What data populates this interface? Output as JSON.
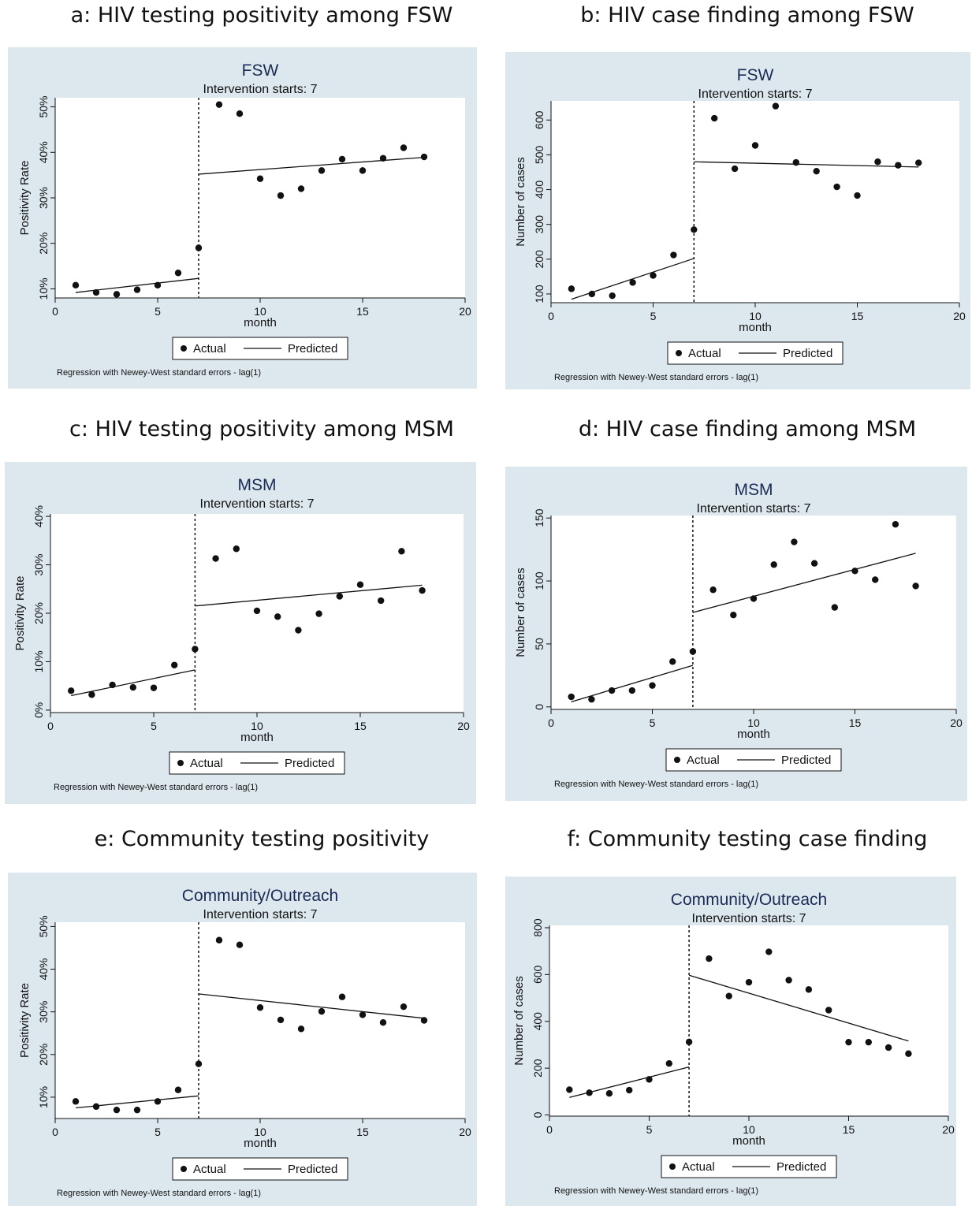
{
  "headings": [
    "a: HIV testing positivity among FSW",
    "b: HIV case finding among FSW",
    "c: HIV testing positivity among MSM",
    "d: HIV case finding among MSM",
    "e: Community testing positivity",
    "f: Community testing case finding"
  ],
  "colors": {
    "panel_bg": "#dce8ee",
    "plot_bg": "#ffffff",
    "title": "#1a2a55",
    "ink": "#111111"
  },
  "chart_data": [
    {
      "type": "line",
      "title": "FSW",
      "subtitle": "Intervention starts: 7",
      "xlabel": "month",
      "ylabel": "Positivity Rate",
      "xlim": [
        0,
        20
      ],
      "xticks": [
        0,
        5,
        10,
        15,
        20
      ],
      "ylim": [
        8,
        52
      ],
      "yticks": [
        10,
        20,
        30,
        40,
        50
      ],
      "ytick_labels": [
        "10%",
        "20%",
        "30%",
        "40%",
        "50%"
      ],
      "intervention_x": 7,
      "series": [
        {
          "name": "Actual",
          "kind": "scatter",
          "x": [
            1,
            2,
            3,
            4,
            5,
            6,
            7,
            8,
            9,
            10,
            11,
            12,
            13,
            14,
            15,
            16,
            17,
            18
          ],
          "y": [
            10.8,
            9.2,
            8.8,
            9.8,
            10.8,
            13.5,
            19.0,
            50.5,
            48.5,
            34.2,
            30.5,
            32.0,
            36.0,
            38.5,
            36.0,
            38.7,
            41.0,
            39.0
          ]
        },
        {
          "name": "Predicted",
          "kind": "line",
          "segments": [
            {
              "x": [
                1,
                7
              ],
              "y": [
                9.2,
                12.3
              ]
            },
            {
              "x": [
                7,
                18
              ],
              "y": [
                35.2,
                38.9
              ]
            }
          ]
        }
      ],
      "legend": [
        "Actual",
        "Predicted"
      ],
      "legend_position": "bottom",
      "note": "Regression with Newey-West standard errors - lag(1)"
    },
    {
      "type": "line",
      "title": "FSW",
      "subtitle": "Intervention starts: 7",
      "xlabel": "month",
      "ylabel": "Number of cases",
      "xlim": [
        0,
        20
      ],
      "xticks": [
        0,
        5,
        10,
        15,
        20
      ],
      "ylim": [
        75,
        655
      ],
      "yticks": [
        100,
        200,
        300,
        400,
        500,
        600
      ],
      "ytick_labels": [
        "100",
        "200",
        "300",
        "400",
        "500",
        "600"
      ],
      "intervention_x": 7,
      "series": [
        {
          "name": "Actual",
          "kind": "scatter",
          "x": [
            1,
            2,
            3,
            4,
            5,
            6,
            7,
            8,
            9,
            10,
            11,
            12,
            13,
            14,
            15,
            16,
            17,
            18
          ],
          "y": [
            115,
            100,
            95,
            133,
            153,
            212,
            285,
            605,
            460,
            527,
            640,
            478,
            453,
            408,
            383,
            480,
            470,
            477
          ]
        },
        {
          "name": "Predicted",
          "kind": "line",
          "segments": [
            {
              "x": [
                1,
                7
              ],
              "y": [
                85,
                202
              ]
            },
            {
              "x": [
                7,
                18
              ],
              "y": [
                480,
                465
              ]
            }
          ]
        }
      ],
      "legend": [
        "Actual",
        "Predicted"
      ],
      "legend_position": "bottom",
      "note": "Regression with Newey-West standard errors - lag(1)"
    },
    {
      "type": "line",
      "title": "MSM",
      "subtitle": "Intervention starts: 7",
      "xlabel": "month",
      "ylabel": "Positivity Rate",
      "xlim": [
        0,
        20
      ],
      "xticks": [
        0,
        5,
        10,
        15,
        20
      ],
      "ylim": [
        -0.5,
        40.5
      ],
      "yticks": [
        0,
        10,
        20,
        30,
        40
      ],
      "ytick_labels": [
        "0%",
        "10%",
        "20%",
        "30%",
        "40%"
      ],
      "intervention_x": 7,
      "series": [
        {
          "name": "Actual",
          "kind": "scatter",
          "x": [
            1,
            2,
            3,
            4,
            5,
            6,
            7,
            8,
            9,
            10,
            11,
            12,
            13,
            14,
            15,
            16,
            17,
            18
          ],
          "y": [
            4.0,
            3.2,
            5.2,
            4.7,
            4.6,
            9.3,
            12.6,
            31.3,
            33.3,
            20.5,
            19.3,
            16.5,
            19.9,
            23.5,
            25.9,
            22.6,
            32.8,
            24.7
          ]
        },
        {
          "name": "Predicted",
          "kind": "line",
          "segments": [
            {
              "x": [
                1,
                7
              ],
              "y": [
                3.0,
                8.3
              ]
            },
            {
              "x": [
                7,
                18
              ],
              "y": [
                21.5,
                25.8
              ]
            }
          ]
        }
      ],
      "legend": [
        "Actual",
        "Predicted"
      ],
      "legend_position": "bottom",
      "note": "Regression with Newey-West standard errors - lag(1)"
    },
    {
      "type": "line",
      "title": "MSM",
      "subtitle": "Intervention starts: 7",
      "xlabel": "month",
      "ylabel": "Number of cases",
      "xlim": [
        0,
        20
      ],
      "xticks": [
        0,
        5,
        10,
        15,
        20
      ],
      "ylim": [
        -2,
        152
      ],
      "yticks": [
        0,
        50,
        100,
        150
      ],
      "ytick_labels": [
        "0",
        "50",
        "100",
        "150"
      ],
      "intervention_x": 7,
      "series": [
        {
          "name": "Actual",
          "kind": "scatter",
          "x": [
            1,
            2,
            3,
            4,
            5,
            6,
            7,
            8,
            9,
            10,
            11,
            12,
            13,
            14,
            15,
            16,
            17,
            18
          ],
          "y": [
            8,
            6,
            13,
            13,
            17,
            36,
            44,
            93,
            73,
            86,
            113,
            131,
            114,
            79,
            108,
            101,
            145,
            96
          ]
        },
        {
          "name": "Predicted",
          "kind": "line",
          "segments": [
            {
              "x": [
                1,
                7
              ],
              "y": [
                4,
                33
              ]
            },
            {
              "x": [
                7,
                18
              ],
              "y": [
                75,
                122
              ]
            }
          ]
        }
      ],
      "legend": [
        "Actual",
        "Predicted"
      ],
      "legend_position": "bottom",
      "note": "Regression with Newey-West standard errors - lag(1)"
    },
    {
      "type": "line",
      "title": "Community/Outreach",
      "subtitle": "Intervention starts: 7",
      "xlabel": "month",
      "ylabel": "Positivity Rate",
      "xlim": [
        0,
        20
      ],
      "xticks": [
        0,
        5,
        10,
        15,
        20
      ],
      "ylim": [
        5,
        51
      ],
      "yticks": [
        10,
        20,
        30,
        40,
        50
      ],
      "ytick_labels": [
        "10%",
        "20%",
        "30%",
        "40%",
        "50%"
      ],
      "intervention_x": 7,
      "series": [
        {
          "name": "Actual",
          "kind": "scatter",
          "x": [
            1,
            2,
            3,
            4,
            5,
            6,
            7,
            8,
            9,
            10,
            11,
            12,
            13,
            14,
            15,
            16,
            17,
            18
          ],
          "y": [
            9.0,
            7.8,
            7.0,
            7.0,
            9.0,
            11.7,
            17.8,
            46.8,
            45.7,
            31.0,
            28.1,
            26.0,
            30.1,
            33.5,
            29.3,
            27.5,
            31.2,
            28.0
          ]
        },
        {
          "name": "Predicted",
          "kind": "line",
          "segments": [
            {
              "x": [
                1,
                7
              ],
              "y": [
                7.5,
                10.3
              ]
            },
            {
              "x": [
                7,
                18
              ],
              "y": [
                34.2,
                28.5
              ]
            }
          ]
        }
      ],
      "legend": [
        "Actual",
        "Predicted"
      ],
      "legend_position": "bottom",
      "note": "Regression with Newey-West standard errors - lag(1)"
    },
    {
      "type": "line",
      "title": "Community/Outreach",
      "subtitle": "Intervention starts: 7",
      "xlabel": "month",
      "ylabel": "Number of cases",
      "xlim": [
        0,
        20
      ],
      "xticks": [
        0,
        5,
        10,
        15,
        20
      ],
      "ylim": [
        -5,
        810
      ],
      "yticks": [
        0,
        200,
        400,
        600,
        800
      ],
      "ytick_labels": [
        "0",
        "200",
        "400",
        "600",
        "800"
      ],
      "intervention_x": 7,
      "series": [
        {
          "name": "Actual",
          "kind": "scatter",
          "x": [
            1,
            2,
            3,
            4,
            5,
            6,
            7,
            8,
            9,
            10,
            11,
            12,
            13,
            14,
            15,
            16,
            17,
            18
          ],
          "y": [
            108,
            95,
            92,
            106,
            152,
            220,
            312,
            668,
            508,
            567,
            697,
            576,
            536,
            448,
            311,
            311,
            288,
            262
          ]
        },
        {
          "name": "Predicted",
          "kind": "line",
          "segments": [
            {
              "x": [
                1,
                7
              ],
              "y": [
                75,
                205
              ]
            },
            {
              "x": [
                7,
                18
              ],
              "y": [
                597,
                316
              ]
            }
          ]
        }
      ],
      "legend": [
        "Actual",
        "Predicted"
      ],
      "legend_position": "bottom",
      "note": "Regression with Newey-West standard errors - lag(1)"
    }
  ]
}
